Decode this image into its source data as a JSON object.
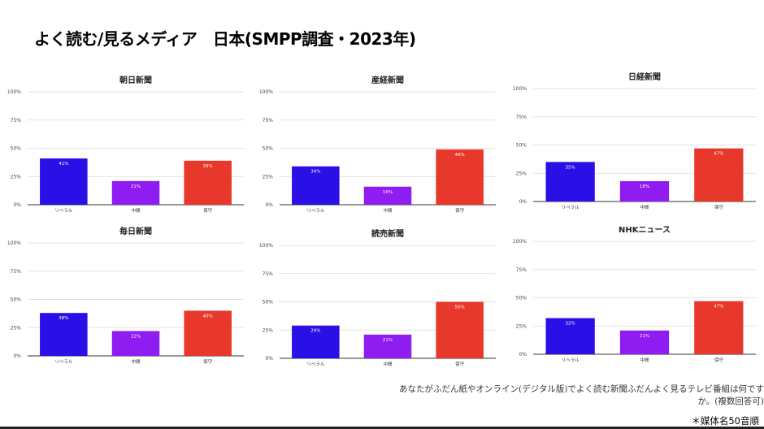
{
  "title": "よく読む/見るメディア　日本(SMPP調査・2023年)",
  "note_lines": [
    "あなたがふだん紙やオンライン(デジタル版)でよく読む新聞ふだんよく見るテレビ番組は何です",
    "か。(複数回答可)"
  ],
  "footnote": "＊媒体名50音順",
  "colors": {
    "liberal": "#2a0fe6",
    "middle": "#8f1cf0",
    "conservative": "#e8372b"
  },
  "chart_data": [
    {
      "type": "bar",
      "title": "朝日新聞",
      "categories": [
        "リベラル",
        "中間",
        "保守"
      ],
      "values": [
        41,
        21,
        39
      ],
      "value_labels": [
        "41%",
        "21%",
        "39%"
      ],
      "yticks": [
        "0%",
        "25%",
        "50%",
        "75%",
        "100%"
      ],
      "ylim": [
        0,
        100
      ],
      "grid": true,
      "legend": "none"
    },
    {
      "type": "bar",
      "title": "産経新聞",
      "categories": [
        "リベラル",
        "中間",
        "保守"
      ],
      "values": [
        34,
        16,
        49
      ],
      "value_labels": [
        "34%",
        "16%",
        "49%"
      ],
      "yticks": [
        "0%",
        "25%",
        "50%",
        "75%",
        "100%"
      ],
      "ylim": [
        0,
        100
      ],
      "grid": true,
      "legend": "none"
    },
    {
      "type": "bar",
      "title": "日経新聞",
      "categories": [
        "リベラル",
        "中間",
        "保守"
      ],
      "values": [
        35,
        18,
        47
      ],
      "value_labels": [
        "35%",
        "18%",
        "47%"
      ],
      "yticks": [
        "0%",
        "25%",
        "50%",
        "75%",
        "100%"
      ],
      "ylim": [
        0,
        100
      ],
      "grid": true,
      "legend": "none"
    },
    {
      "type": "bar",
      "title": "毎日新聞",
      "categories": [
        "リベラル",
        "中間",
        "保守"
      ],
      "values": [
        38,
        22,
        40
      ],
      "value_labels": [
        "38%",
        "22%",
        "40%"
      ],
      "yticks": [
        "0%",
        "25%",
        "50%",
        "75%",
        "100%"
      ],
      "ylim": [
        0,
        100
      ],
      "grid": true,
      "legend": "none"
    },
    {
      "type": "bar",
      "title": "読売新聞",
      "categories": [
        "リベラル",
        "中間",
        "保守"
      ],
      "values": [
        29,
        21,
        50
      ],
      "value_labels": [
        "29%",
        "21%",
        "50%"
      ],
      "yticks": [
        "0%",
        "25%",
        "50%",
        "75%",
        "100%"
      ],
      "ylim": [
        0,
        100
      ],
      "grid": true,
      "legend": "none"
    },
    {
      "type": "bar",
      "title": "NHKニュース",
      "categories": [
        "リベラル",
        "中間",
        "保守"
      ],
      "values": [
        32,
        21,
        47
      ],
      "value_labels": [
        "32%",
        "21%",
        "47%"
      ],
      "yticks": [
        "0%",
        "25%",
        "50%",
        "75%",
        "100%"
      ],
      "ylim": [
        0,
        100
      ],
      "grid": true,
      "legend": "none"
    }
  ]
}
